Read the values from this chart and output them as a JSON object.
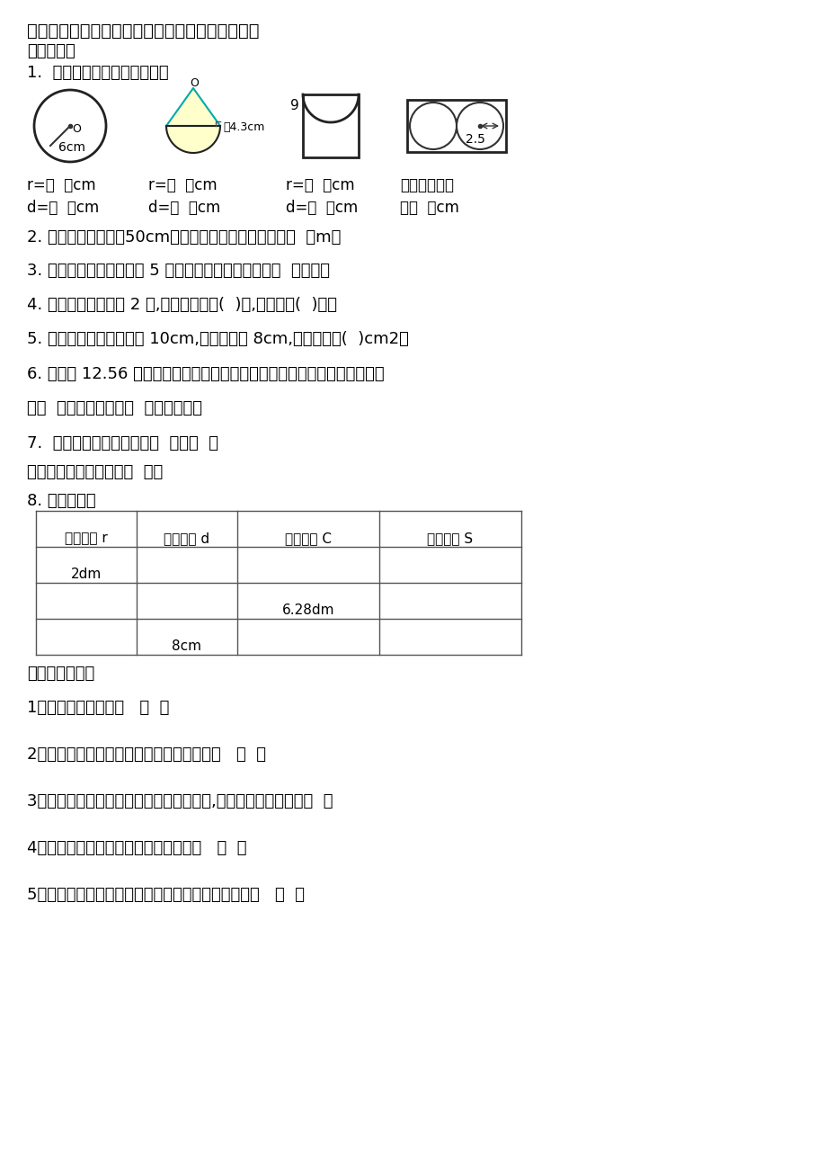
{
  "title": "小学六年级数学上册第一单元测试题（北师大版）",
  "bg_color": "#ffffff",
  "text_color": "#000000",
  "section1": "一、填空。",
  "q1_label": "1.  看图填空。（单位：厘米）",
  "fig_labels": [
    [
      "r=（  ）cm",
      "d=（  ）cm"
    ],
    [
      "r=（  ）cm",
      "d=（  ）cm"
    ],
    [
      "r=（  ）cm",
      "d=（  ）cm"
    ],
    [
      "长方形的周长",
      "是（  ）cm"
    ]
  ],
  "q2": "2. 一个车轮的直径为50cm，车轮转动一周，大约前进（  ）m。",
  "q3": "3. 当圆规两脚间的距离为 5 厘米时，画出圆的周长是（  ）厘米。",
  "q4": "4. 一个圆的半径扩大 2 倍,它的周长扩大(  )倍,面积扩大(  )倍。",
  "q5": "5. 一个环形的外圆直径是 10cm,内圆直径是 8cm,它的面积是(  )cm2。",
  "q6a": "6. 用一根 12.56 分米的铁丝弯成一个圆形铁环（接口处不计），铁环的直径",
  "q6b": "是（  ）分米，面积是（  ）平方分米。",
  "q7a": "7.  圆的周长计算公式是：（  ）或（  ）",
  "q7b": "圆的面积计算公式是：（  ）。",
  "q8_label": "8. 完成下表。",
  "table_headers": [
    "圆的半径 r",
    "圆的直径 d",
    "圆的周长 C",
    "圆的面积 S"
  ],
  "table_row1": [
    "2dm",
    "",
    "",
    ""
  ],
  "table_row2": [
    "",
    "",
    "6.28dm",
    ""
  ],
  "table_row3": [
    "",
    "8cm",
    "",
    ""
  ],
  "section2": "二、判断正误。",
  "judge1": "1、直径总比半径长。   （  ）",
  "judge2": "2、圆心决定圆的位置，半径决定圆的大小。   （  ）",
  "judge3": "3、一个圆的面积和一个正方形的面积相等,它们的周长也相等。（  ）",
  "judge4": "4、半圆的周长是这个圆的周长的一半。   （  ）",
  "judge5": "5、两端都在圆上的所有线段中，直径是最长的一条。   （  ）"
}
